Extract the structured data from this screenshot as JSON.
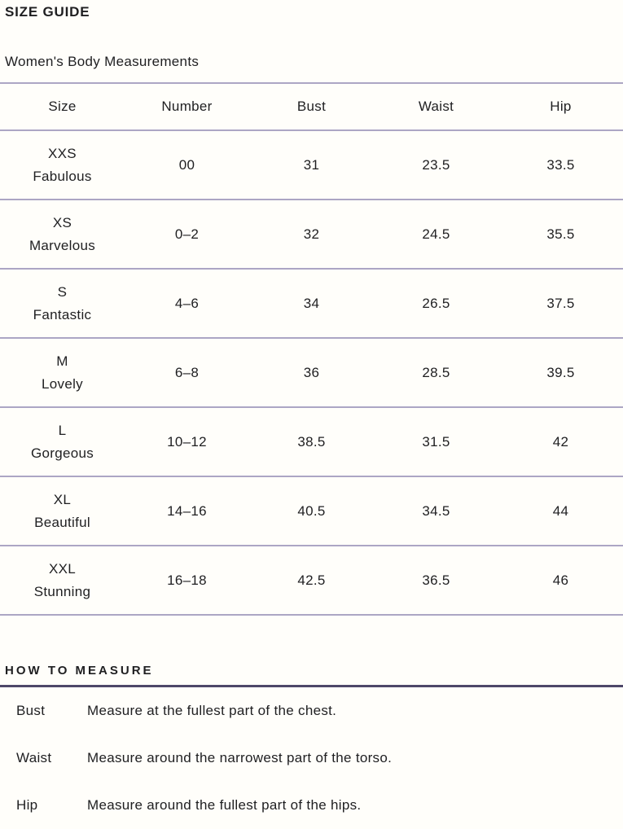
{
  "page": {
    "title": "SIZE GUIDE",
    "subtitle": "Women's Body Measurements"
  },
  "size_table": {
    "columns": [
      "Size",
      "Number",
      "Bust",
      "Waist",
      "Hip"
    ],
    "rows": [
      {
        "size": "XXS",
        "name": "Fabulous",
        "number": "00",
        "bust": "31",
        "waist": "23.5",
        "hip": "33.5"
      },
      {
        "size": "XS",
        "name": "Marvelous",
        "number": "0–2",
        "bust": "32",
        "waist": "24.5",
        "hip": "35.5"
      },
      {
        "size": "S",
        "name": "Fantastic",
        "number": "4–6",
        "bust": "34",
        "waist": "26.5",
        "hip": "37.5"
      },
      {
        "size": "M",
        "name": "Lovely",
        "number": "6–8",
        "bust": "36",
        "waist": "28.5",
        "hip": "39.5"
      },
      {
        "size": "L",
        "name": "Gorgeous",
        "number": "10–12",
        "bust": "38.5",
        "waist": "31.5",
        "hip": "42"
      },
      {
        "size": "XL",
        "name": "Beautiful",
        "number": "14–16",
        "bust": "40.5",
        "waist": "34.5",
        "hip": "44"
      },
      {
        "size": "XXL",
        "name": "Stunning",
        "number": "16–18",
        "bust": "42.5",
        "waist": "36.5",
        "hip": "46"
      }
    ]
  },
  "how_to_measure": {
    "heading": "HOW TO MEASURE",
    "items": [
      {
        "label": "Bust",
        "description": "Measure at the fullest part of the chest."
      },
      {
        "label": "Waist",
        "description": "Measure around the narrowest part of the torso."
      },
      {
        "label": "Hip",
        "description": "Measure around the fullest part of the hips."
      }
    ]
  },
  "colors": {
    "text": "#1f1f21",
    "divider_light": "#aca6c4",
    "divider_dark": "#4d4769",
    "background": "#fffefa"
  }
}
